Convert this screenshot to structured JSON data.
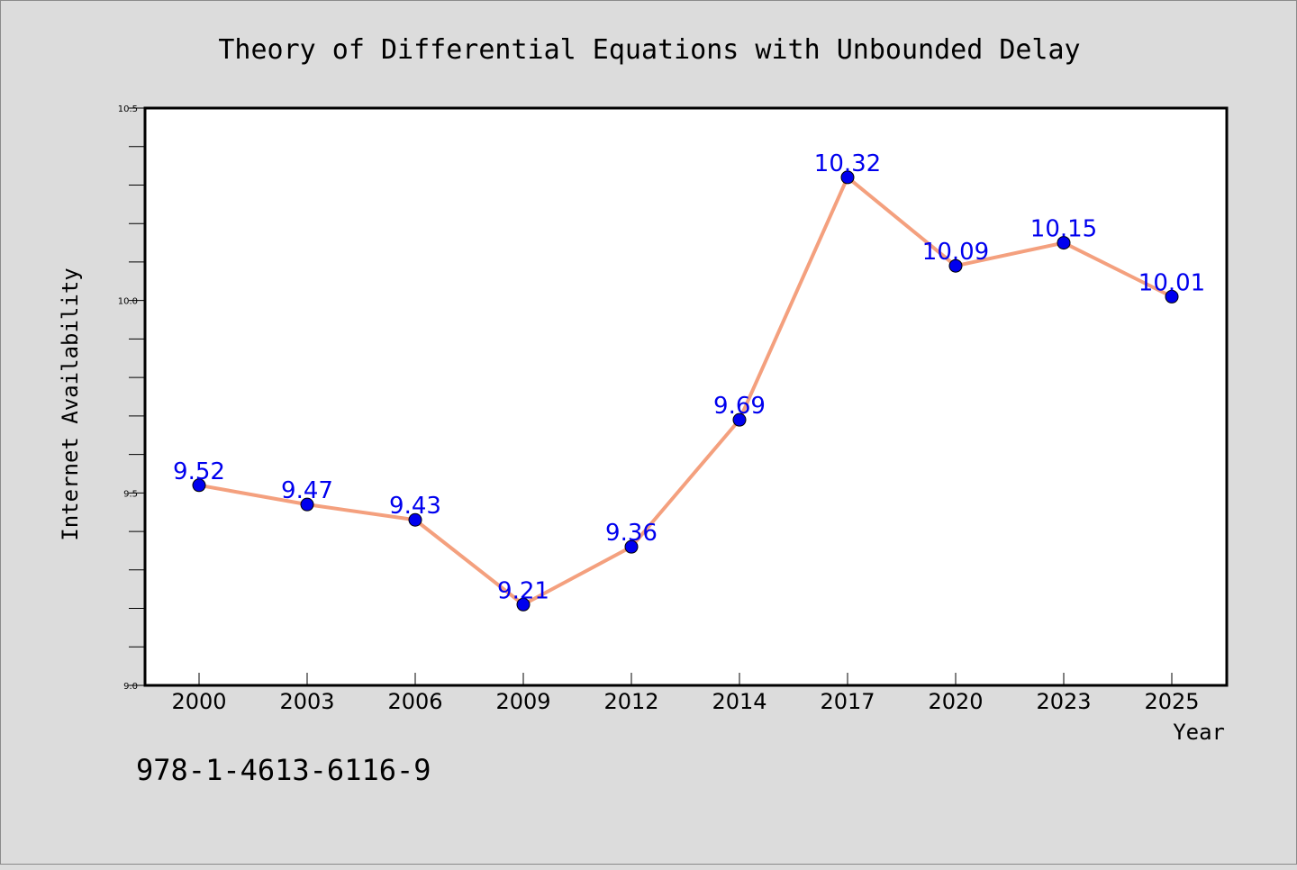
{
  "chart_data": {
    "type": "line",
    "title": "Theory of Differential Equations with Unbounded Delay",
    "xlabel": "Year",
    "ylabel": "Internet Availability",
    "categories": [
      "2000",
      "2003",
      "2006",
      "2009",
      "2012",
      "2014",
      "2017",
      "2020",
      "2023",
      "2025"
    ],
    "series": [
      {
        "values": [
          9.52,
          9.47,
          9.43,
          9.21,
          9.36,
          9.69,
          10.32,
          10.09,
          10.15,
          10.01
        ],
        "data_labels": [
          "9.52",
          "9.47",
          "9.43",
          "9.21",
          "9.36",
          "9.69",
          "10.32",
          "10.09",
          "10.15",
          "10.01"
        ]
      }
    ],
    "ylim": [
      9.0,
      10.5
    ],
    "y_ticks": [
      "9.0",
      "9.5",
      "10.0",
      "10.5"
    ],
    "y_minor_step": 0.1,
    "grid": false,
    "colors": {
      "line": "#f4a07e",
      "marker": "#0000ee",
      "label": "#0000ee",
      "background": "#dcdcdc",
      "plot_area": "#ffffff"
    }
  },
  "annotation": "978-1-4613-6116-9"
}
